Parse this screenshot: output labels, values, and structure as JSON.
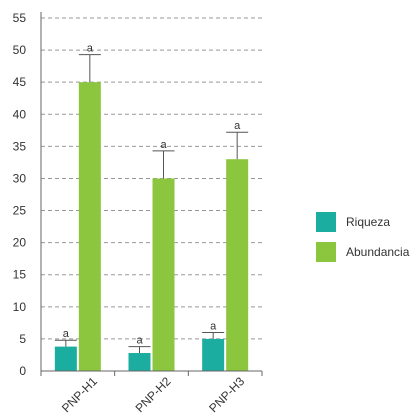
{
  "chart_data": {
    "type": "bar",
    "categories": [
      "PNP-H1",
      "PNP-H2",
      "PNP-H3"
    ],
    "series": [
      {
        "name": "Riqueza",
        "color": "#1aada0",
        "values": [
          3.8,
          2.8,
          5.0
        ],
        "errors": [
          1.0,
          1.0,
          1.0
        ],
        "labels": [
          "a",
          "a",
          "a"
        ]
      },
      {
        "name": "Abundancia",
        "color": "#8cc63f",
        "values": [
          45.0,
          30.0,
          33.0
        ],
        "errors": [
          4.3,
          4.3,
          4.2
        ],
        "labels": [
          "a",
          "a",
          "a"
        ]
      }
    ],
    "yticks": [
      "0",
      "5",
      "10",
      "15",
      "20",
      "25",
      "30",
      "35",
      "40",
      "45",
      "50",
      "55"
    ],
    "ylim": [
      0,
      55
    ],
    "grid": true,
    "legend_position": "right"
  }
}
